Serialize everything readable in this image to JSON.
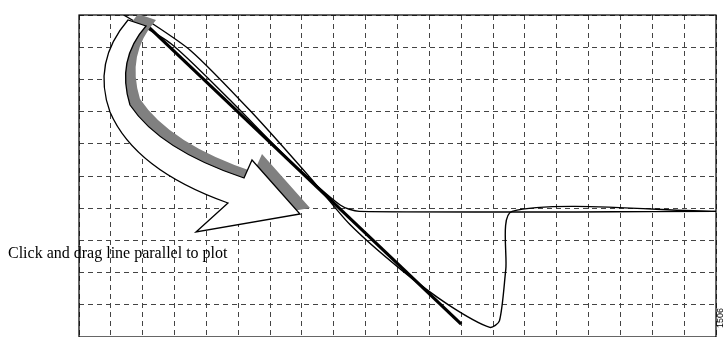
{
  "chart_data": {
    "type": "line",
    "xlim": [
      0,
      20
    ],
    "xticks": [
      0,
      1,
      2,
      3,
      4,
      5,
      6,
      7,
      8,
      9,
      10,
      11,
      12,
      13,
      14,
      15,
      16,
      17,
      18,
      19,
      20
    ],
    "ylim": [
      0,
      10
    ],
    "yticks": [
      0,
      1,
      2,
      3,
      4,
      5,
      6,
      7,
      8,
      9,
      10
    ],
    "grid": true,
    "tick_labels": false,
    "series": [
      {
        "color": "#000000",
        "line_style": "solid",
        "marker": "none",
        "x": [
          1.4,
          2.9,
          4.7,
          6.6,
          8.2,
          8.8,
          20
        ],
        "values": [
          10,
          9.1,
          7.4,
          5.5,
          4.1,
          3.9,
          3.9
        ]
      },
      {
        "color": "#000000",
        "line_style": "solid",
        "marker": "none",
        "x": [
          1.9,
          3.5,
          5.4,
          7.3,
          8.5,
          10.1,
          11.6,
          12.9,
          13.2,
          13.4,
          13.6,
          20
        ],
        "values": [
          10,
          8.9,
          7.0,
          4.9,
          3.5,
          2.1,
          1.0,
          0.3,
          0.5,
          2.1,
          3.9,
          3.9
        ]
      },
      {
        "color": "#000000",
        "line_style": "solid",
        "marker": "none",
        "x": [
          2.0,
          12.0
        ],
        "values": [
          9.8,
          0.4
        ]
      }
    ],
    "annotations": [
      "Click and drag line parallel to plot",
      "1506"
    ]
  }
}
